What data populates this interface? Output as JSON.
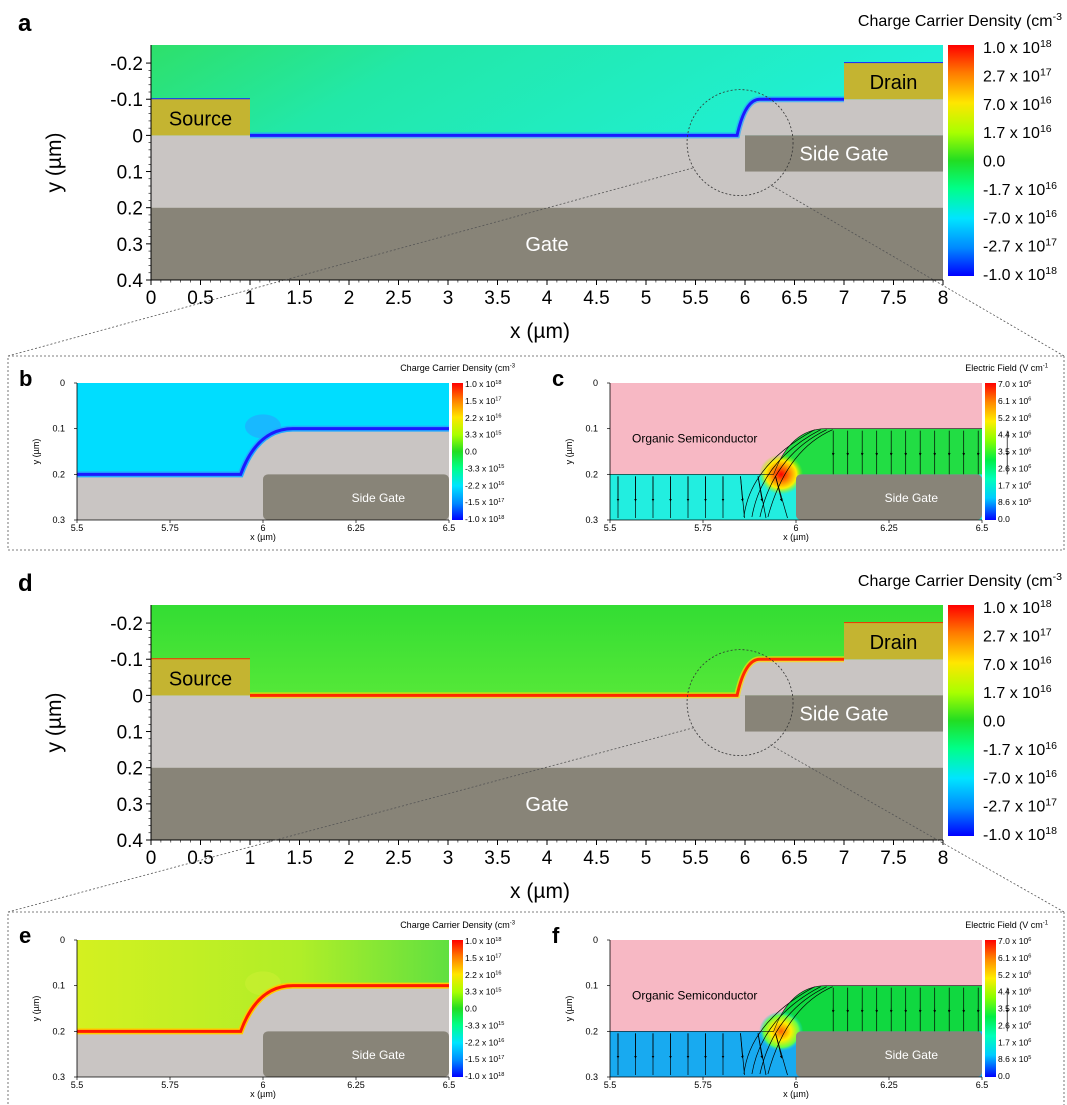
{
  "top_panels": [
    {
      "letter": "a",
      "mode": "depletion",
      "colorbar_title": "Charge Carrier Density (cm",
      "colorbar_title_sup": "-3",
      "colorbar_ticks": [
        "1.0 x 10",
        "2.7 x 10",
        "7.0 x 10",
        "1.7 x 10",
        "0.0",
        "-1.7 x 10",
        "-7.0 x 10",
        "-2.7 x 10",
        "-1.0 x 10"
      ],
      "colorbar_exps": [
        "18",
        "17",
        "16",
        "16",
        "",
        "16",
        "16",
        "17",
        "18"
      ],
      "xlabel": "x (µm)",
      "ylabel": "y (µm)",
      "xticks": [
        "0",
        "0.5",
        "1",
        "1.5",
        "2",
        "2.5",
        "3",
        "3.5",
        "4",
        "4.5",
        "5",
        "5.5",
        "6",
        "6.5",
        "7",
        "7.5",
        "8"
      ],
      "yticks": [
        "-0.2",
        "-0.1",
        "0",
        "0.1",
        "0.2",
        "0.3",
        "0.4"
      ],
      "labels": {
        "source": "Source",
        "drain": "Drain",
        "side_gate": "Side Gate",
        "gate": "Gate"
      }
    },
    {
      "letter": "d",
      "mode": "accumulation",
      "colorbar_title": "Charge Carrier Density (cm",
      "colorbar_title_sup": "-3",
      "colorbar_ticks": [
        "1.0 x 10",
        "2.7 x 10",
        "7.0 x 10",
        "1.7 x 10",
        "0.0",
        "-1.7 x 10",
        "-7.0 x 10",
        "-2.7 x 10",
        "-1.0 x 10"
      ],
      "colorbar_exps": [
        "18",
        "17",
        "16",
        "16",
        "",
        "16",
        "16",
        "17",
        "18"
      ],
      "xlabel": "x (µm)",
      "ylabel": "y (µm)",
      "xticks": [
        "0",
        "0.5",
        "1",
        "1.5",
        "2",
        "2.5",
        "3",
        "3.5",
        "4",
        "4.5",
        "5",
        "5.5",
        "6",
        "6.5",
        "7",
        "7.5",
        "8"
      ],
      "yticks": [
        "-0.2",
        "-0.1",
        "0",
        "0.1",
        "0.2",
        "0.3",
        "0.4"
      ],
      "labels": {
        "source": "Source",
        "drain": "Drain",
        "side_gate": "Side Gate",
        "gate": "Gate"
      }
    }
  ],
  "zoom_panels": [
    {
      "letter": "b",
      "kind": "density",
      "mode": "depletion",
      "colorbar_title": "Charge Carrier Density (cm",
      "colorbar_title_sup": "-3",
      "colorbar_ticks": [
        "1.0 x 10",
        "1.5 x 10",
        "2.2 x 10",
        "3.3 x 10",
        "0.0",
        "-3.3 x 10",
        "-2.2 x 10",
        "-1.5 x 10",
        "-1.0 x 10"
      ],
      "colorbar_exps": [
        "18",
        "17",
        "16",
        "15",
        "",
        "15",
        "16",
        "17",
        "18"
      ],
      "xticks": [
        "5.5",
        "5.75",
        "6",
        "6.25",
        "6.5"
      ],
      "yticks": [
        "0",
        "0.1",
        "0.2",
        "0.3"
      ],
      "xlabel": "x (µm)",
      "ylabel": "y (µm)",
      "side_gate": "Side Gate"
    },
    {
      "letter": "c",
      "kind": "field",
      "mode": "depletion",
      "colorbar_title": "Electric Field (V cm",
      "colorbar_title_sup": "-1",
      "colorbar_ticks": [
        "7.0 x 10",
        "6.1 x 10",
        "5.2 x 10",
        "4.4 x 10",
        "3.5 x 10",
        "2.6 x 10",
        "1.7 x 10",
        "8.6 x 10",
        "0.0"
      ],
      "colorbar_exps": [
        "6",
        "6",
        "6",
        "6",
        "6",
        "6",
        "6",
        "5",
        ""
      ],
      "xticks": [
        "5.5",
        "5.75",
        "6",
        "6.25",
        "6.5"
      ],
      "yticks": [
        "0",
        "0.1",
        "0.2",
        "0.3"
      ],
      "xlabel": "x (µm)",
      "ylabel": "y (µm)",
      "side_gate": "Side Gate",
      "semiconductor": "Organic Semiconductor"
    },
    {
      "letter": "e",
      "kind": "density",
      "mode": "accumulation",
      "colorbar_title": "Charge Carrier Density (cm",
      "colorbar_title_sup": "-3",
      "colorbar_ticks": [
        "1.0 x 10",
        "1.5 x 10",
        "2.2 x 10",
        "3.3 x 10",
        "0.0",
        "-3.3 x 10",
        "-2.2 x 10",
        "-1.5 x 10",
        "-1.0 x 10"
      ],
      "colorbar_exps": [
        "18",
        "17",
        "16",
        "15",
        "",
        "15",
        "16",
        "17",
        "18"
      ],
      "xticks": [
        "5.5",
        "5.75",
        "6",
        "6.25",
        "6.5"
      ],
      "yticks": [
        "0",
        "0.1",
        "0.2",
        "0.3"
      ],
      "xlabel": "x (µm)",
      "ylabel": "y (µm)",
      "side_gate": "Side Gate"
    },
    {
      "letter": "f",
      "kind": "field",
      "mode": "accumulation",
      "colorbar_title": "Electric Field (V cm",
      "colorbar_title_sup": "-1",
      "colorbar_ticks": [
        "7.0 x 10",
        "6.1 x 10",
        "5.2 x 10",
        "4.4 x 10",
        "3.5 x 10",
        "2.6 x 10",
        "1.7 x 10",
        "8.6 x 10",
        "0.0"
      ],
      "colorbar_exps": [
        "6",
        "6",
        "6",
        "6",
        "6",
        "6",
        "6",
        "5",
        ""
      ],
      "xticks": [
        "5.5",
        "5.75",
        "6",
        "6.25",
        "6.5"
      ],
      "yticks": [
        "0",
        "0.1",
        "0.2",
        "0.3"
      ],
      "xlabel": "x (µm)",
      "ylabel": "y (µm)",
      "side_gate": "Side Gate",
      "semiconductor": "Organic Semiconductor"
    }
  ]
}
